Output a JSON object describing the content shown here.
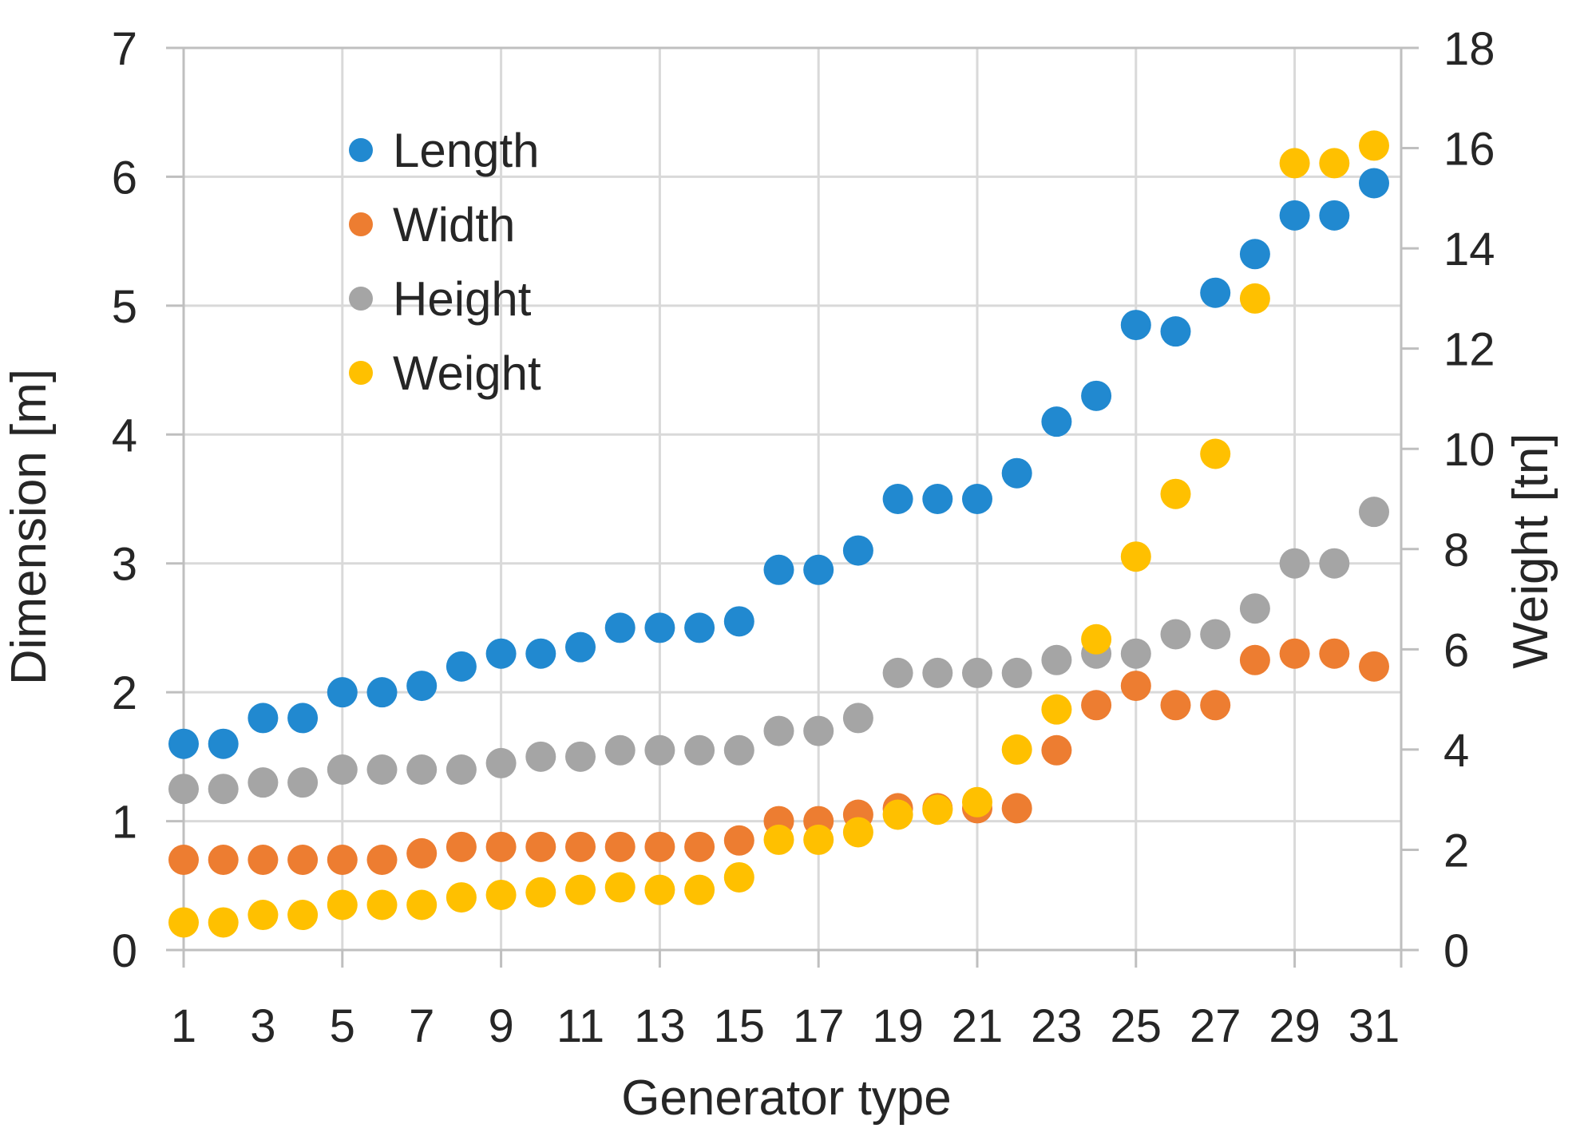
{
  "chart_data": {
    "type": "scatter",
    "title": "",
    "xlabel": "Generator type",
    "ylabel_left": "Dimension [m]",
    "ylabel_right": "Weight [tn]",
    "x": [
      1,
      2,
      3,
      4,
      5,
      6,
      7,
      8,
      9,
      10,
      11,
      12,
      13,
      14,
      15,
      16,
      17,
      18,
      19,
      20,
      21,
      22,
      23,
      24,
      25,
      26,
      27,
      28,
      29,
      30,
      31
    ],
    "series": [
      {
        "name": "Length",
        "axis": "left",
        "color": "#2189D0",
        "values": [
          1.6,
          1.6,
          1.8,
          1.8,
          2.0,
          2.0,
          2.05,
          2.2,
          2.3,
          2.3,
          2.35,
          2.5,
          2.5,
          2.5,
          2.55,
          2.95,
          2.95,
          3.1,
          3.5,
          3.5,
          3.5,
          3.7,
          4.1,
          4.3,
          4.85,
          4.8,
          5.1,
          5.4,
          5.7,
          5.7,
          5.95
        ]
      },
      {
        "name": "Width",
        "axis": "left",
        "color": "#ED7D31",
        "values": [
          0.7,
          0.7,
          0.7,
          0.7,
          0.7,
          0.7,
          0.75,
          0.8,
          0.8,
          0.8,
          0.8,
          0.8,
          0.8,
          0.8,
          0.85,
          1.0,
          1.0,
          1.05,
          1.1,
          1.1,
          1.1,
          1.1,
          1.55,
          1.9,
          2.05,
          1.9,
          1.9,
          2.25,
          2.3,
          2.3,
          2.2
        ]
      },
      {
        "name": "Height",
        "axis": "left",
        "color": "#A5A5A5",
        "values": [
          1.25,
          1.25,
          1.3,
          1.3,
          1.4,
          1.4,
          1.4,
          1.4,
          1.45,
          1.5,
          1.5,
          1.55,
          1.55,
          1.55,
          1.55,
          1.7,
          1.7,
          1.8,
          2.15,
          2.15,
          2.15,
          2.15,
          2.25,
          2.3,
          2.3,
          2.45,
          2.45,
          2.65,
          3.0,
          3.0,
          3.4
        ]
      },
      {
        "name": "Weight",
        "axis": "right",
        "color": "#FFC000",
        "values": [
          0.55,
          0.55,
          0.7,
          0.7,
          0.9,
          0.9,
          0.9,
          1.05,
          1.1,
          1.15,
          1.2,
          1.25,
          1.2,
          1.2,
          1.45,
          2.2,
          2.2,
          2.35,
          2.7,
          2.8,
          2.95,
          4.0,
          4.8,
          6.2,
          7.85,
          9.1,
          9.9,
          13.0,
          15.7,
          15.7,
          16.05
        ]
      }
    ],
    "ylim_left": [
      0,
      7
    ],
    "ylim_right": [
      0,
      18
    ],
    "left_tick_labels": [
      0,
      1,
      2,
      3,
      4,
      5,
      6,
      7
    ],
    "right_tick_labels": [
      0,
      2,
      4,
      6,
      8,
      10,
      12,
      14,
      16,
      18
    ],
    "x_tick_labels": [
      1,
      3,
      5,
      7,
      9,
      11,
      13,
      15,
      17,
      19,
      21,
      23,
      25,
      27,
      29,
      31
    ],
    "x_gridlines": [
      5,
      9,
      13,
      17,
      21,
      25,
      29
    ],
    "grid": true,
    "legend_position": "top-left-inside",
    "colors": {
      "gridline": "#D9D9D9",
      "axis_line": "#BFBFBF",
      "text": "#262626"
    }
  },
  "legend": {
    "items": [
      {
        "label": "Length"
      },
      {
        "label": "Width"
      },
      {
        "label": "Height"
      },
      {
        "label": "Weight"
      }
    ]
  }
}
